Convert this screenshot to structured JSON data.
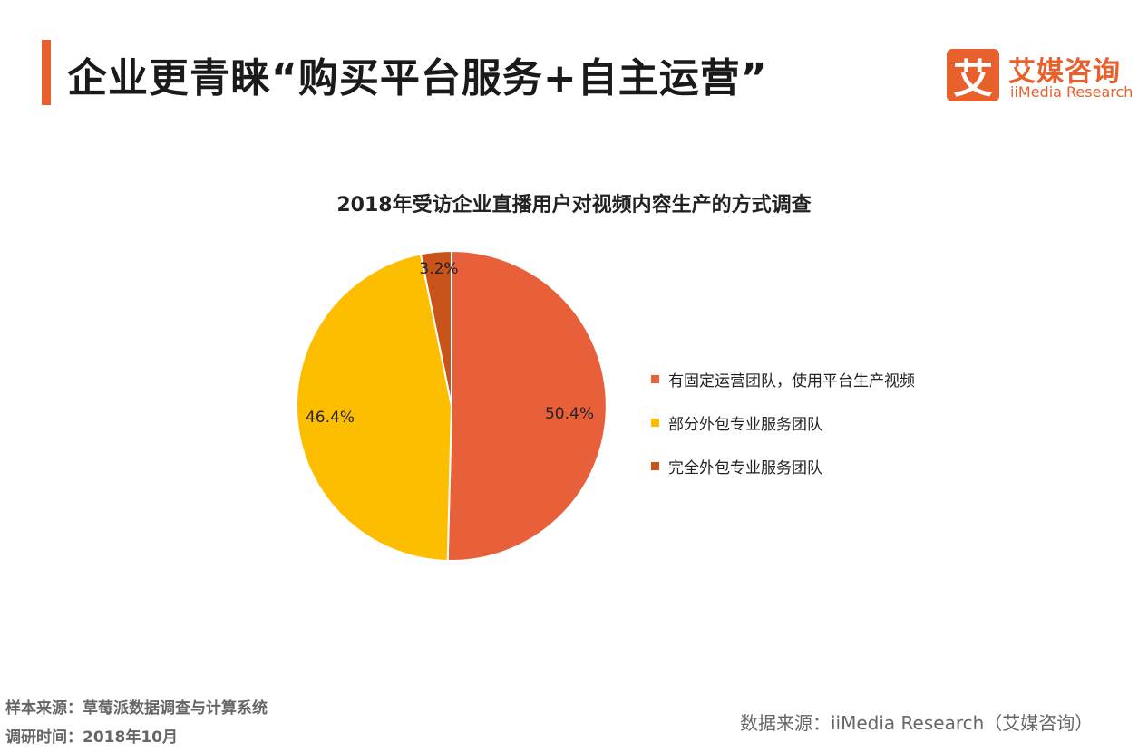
{
  "header": {
    "title": "企业更青睐“购买平台服务+自主运营”",
    "accent_color": "#E8602C"
  },
  "logo": {
    "mark": "艾",
    "name_cn": "艾媒咨询",
    "name_en": "iiMedia Research"
  },
  "chart_data": {
    "type": "pie",
    "title": "2018年受访企业直播用户对视频内容生产的方式调查",
    "categories": [
      "有固定运营团队，使用平台生产视频",
      "部分外包专业服务团队",
      "完全外包专业服务团队"
    ],
    "values": [
      50.4,
      46.4,
      3.2
    ],
    "labels": [
      "50.4%",
      "46.4%",
      "3.2%"
    ],
    "colors": [
      "#E8603A",
      "#FDBE00",
      "#C8541C"
    ],
    "legend_position": "right"
  },
  "footer": {
    "sample_source": "样本来源：草莓派数据调查与计算系统",
    "survey_time": "调研时间：2018年10月",
    "data_source": "数据来源：iiMedia Research（艾媒咨询）"
  }
}
